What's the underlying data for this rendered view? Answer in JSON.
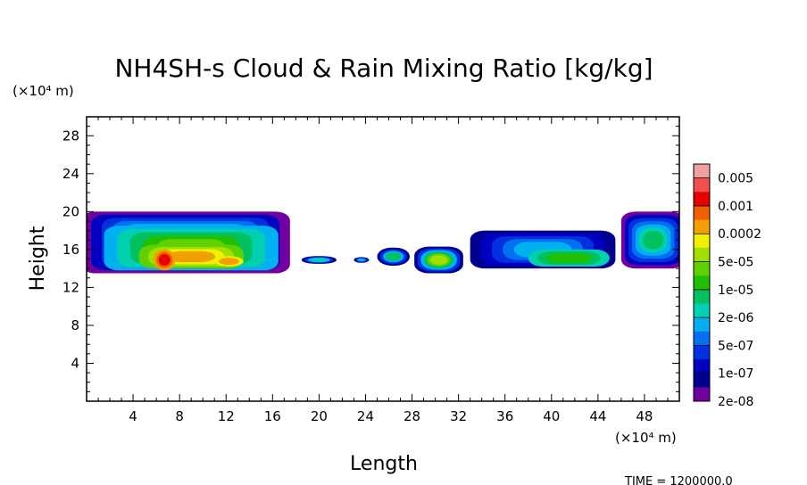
{
  "chart_data": {
    "type": "heatmap",
    "title": "NH4SH-s Cloud & Rain Mixing Ratio [kg/kg]",
    "xlabel": "Length",
    "ylabel": "Height",
    "x_unit": "(×10⁴ m)",
    "y_unit": "(×10⁴ m)",
    "xlim": [
      0,
      51
    ],
    "ylim": [
      0,
      30
    ],
    "x_ticks": [
      4,
      8,
      12,
      16,
      20,
      24,
      28,
      32,
      36,
      40,
      44,
      48
    ],
    "y_ticks": [
      4,
      8,
      12,
      16,
      20,
      24,
      28
    ],
    "colorbar": {
      "labels": [
        "0.005",
        "0.001",
        "0.0002",
        "5e-05",
        "1e-05",
        "2e-06",
        "5e-07",
        "1e-07",
        "2e-08"
      ],
      "colors": [
        "#f0a0a0",
        "#f05050",
        "#e80000",
        "#f06000",
        "#f0a000",
        "#f0f000",
        "#a0e000",
        "#60d000",
        "#20c000",
        "#00c060",
        "#00d0b0",
        "#00b0f0",
        "#0070f0",
        "#0030e0",
        "#0000c0",
        "#000090",
        "#7000a0"
      ]
    },
    "cloud_layers": [
      {
        "x_start": 0,
        "x_end": 17.5,
        "y_bottom": 13.5,
        "y_top": 20
      },
      {
        "x_start": 18.5,
        "x_end": 21.5,
        "y_bottom": 14.5,
        "y_top": 15.3
      },
      {
        "x_start": 23,
        "x_end": 25.5,
        "y_bottom": 14.5,
        "y_top": 15.3
      },
      {
        "x_start": 25,
        "x_end": 28,
        "y_bottom": 14.3,
        "y_top": 16.2
      },
      {
        "x_start": 28,
        "x_end": 32.5,
        "y_bottom": 13.5,
        "y_top": 16.3
      },
      {
        "x_start": 33,
        "x_end": 45.5,
        "y_bottom": 14,
        "y_top": 18
      },
      {
        "x_start": 46,
        "x_end": 51,
        "y_bottom": 14,
        "y_top": 20
      }
    ]
  },
  "footer": {
    "time_text": "TIME  =  1200000.0"
  }
}
